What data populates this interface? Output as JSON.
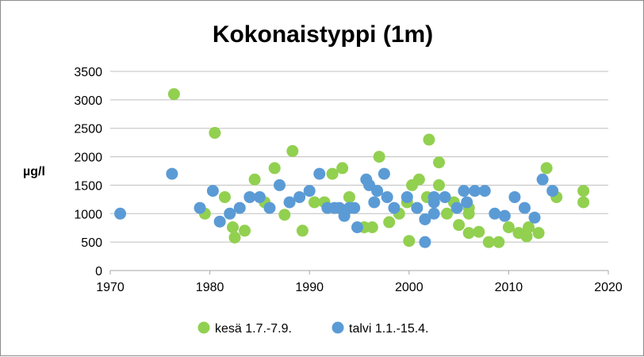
{
  "chart_data": {
    "type": "scatter",
    "title": "Kokonaistyppi (1m)",
    "xlabel": "",
    "ylabel": "µg/l",
    "xlim": [
      1970,
      2020
    ],
    "ylim": [
      0,
      3500
    ],
    "xticks": [
      1970,
      1980,
      1990,
      2000,
      2010,
      2020
    ],
    "yticks": [
      0,
      500,
      1000,
      1500,
      2000,
      2500,
      3000,
      3500
    ],
    "grid": "horizontal",
    "legend": "bottom",
    "series": [
      {
        "name": "kesä 1.7.-7.9.",
        "color": "#92d050",
        "points": [
          [
            1976.4,
            3100
          ],
          [
            1979.5,
            1000
          ],
          [
            1980.5,
            2420
          ],
          [
            1981.5,
            1290
          ],
          [
            1982.3,
            760
          ],
          [
            1982.5,
            580
          ],
          [
            1983.5,
            700
          ],
          [
            1984.5,
            1600
          ],
          [
            1985.5,
            1200
          ],
          [
            1986.5,
            1800
          ],
          [
            1987.5,
            980
          ],
          [
            1988.3,
            2100
          ],
          [
            1989.3,
            700
          ],
          [
            1990.5,
            1200
          ],
          [
            1991.5,
            1200
          ],
          [
            1992.3,
            1700
          ],
          [
            1993.3,
            1800
          ],
          [
            1994.0,
            1290
          ],
          [
            1995.5,
            760
          ],
          [
            1996.3,
            760
          ],
          [
            1997.0,
            2000
          ],
          [
            1998.0,
            850
          ],
          [
            1999.0,
            1000
          ],
          [
            1999.8,
            1200
          ],
          [
            2000.0,
            520
          ],
          [
            2000.3,
            1500
          ],
          [
            2001.0,
            1600
          ],
          [
            2001.8,
            1290
          ],
          [
            2002.0,
            2300
          ],
          [
            2003.0,
            1900
          ],
          [
            2003.0,
            1500
          ],
          [
            2003.8,
            1000
          ],
          [
            2004.5,
            1200
          ],
          [
            2005.0,
            800
          ],
          [
            2006.0,
            660
          ],
          [
            2006.0,
            1100
          ],
          [
            2006.0,
            1000
          ],
          [
            2007.0,
            680
          ],
          [
            2008.0,
            500
          ],
          [
            2009.0,
            500
          ],
          [
            2010.0,
            760
          ],
          [
            2011.0,
            660
          ],
          [
            2011.8,
            600
          ],
          [
            2012.0,
            760
          ],
          [
            2013.0,
            660
          ],
          [
            2013.8,
            1800
          ],
          [
            2014.8,
            1290
          ],
          [
            2017.5,
            1400
          ],
          [
            2017.5,
            1200
          ]
        ]
      },
      {
        "name": "talvi 1.1.-15.4.",
        "color": "#5b9bd5",
        "points": [
          [
            1971.0,
            1000
          ],
          [
            1976.2,
            1700
          ],
          [
            1979.0,
            1100
          ],
          [
            1980.3,
            1400
          ],
          [
            1981.0,
            860
          ],
          [
            1982.0,
            1000
          ],
          [
            1983.0,
            1100
          ],
          [
            1984.0,
            1290
          ],
          [
            1985.0,
            1290
          ],
          [
            1986.0,
            1100
          ],
          [
            1987.0,
            1500
          ],
          [
            1988.0,
            1200
          ],
          [
            1989.0,
            1290
          ],
          [
            1990.0,
            1400
          ],
          [
            1991.0,
            1700
          ],
          [
            1991.8,
            1100
          ],
          [
            1992.5,
            1100
          ],
          [
            1993.0,
            1100
          ],
          [
            1993.5,
            960
          ],
          [
            1994.0,
            1100
          ],
          [
            1994.5,
            1100
          ],
          [
            1994.8,
            760
          ],
          [
            1995.7,
            1600
          ],
          [
            1996.0,
            1500
          ],
          [
            1996.5,
            1200
          ],
          [
            1996.8,
            1400
          ],
          [
            1997.5,
            1700
          ],
          [
            1997.8,
            1290
          ],
          [
            1998.5,
            1100
          ],
          [
            1999.8,
            1290
          ],
          [
            2000.8,
            1100
          ],
          [
            2001.6,
            500
          ],
          [
            2001.6,
            900
          ],
          [
            2002.5,
            1000
          ],
          [
            2002.5,
            1200
          ],
          [
            2002.5,
            1290
          ],
          [
            2003.6,
            1290
          ],
          [
            2004.8,
            1100
          ],
          [
            2005.5,
            1400
          ],
          [
            2005.8,
            1200
          ],
          [
            2006.6,
            1400
          ],
          [
            2007.6,
            1400
          ],
          [
            2008.6,
            1000
          ],
          [
            2009.6,
            960
          ],
          [
            2010.6,
            1290
          ],
          [
            2011.6,
            1100
          ],
          [
            2012.6,
            930
          ],
          [
            2013.4,
            1600
          ],
          [
            2014.4,
            1400
          ]
        ]
      }
    ]
  }
}
